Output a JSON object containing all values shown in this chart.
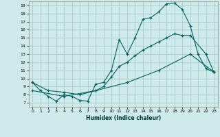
{
  "xlabel": "Humidex (Indice chaleur)",
  "bg_color": "#ceeaea",
  "grid_color": "#aacccc",
  "line_color": "#006060",
  "xlim": [
    -0.5,
    23.5
  ],
  "ylim": [
    6.5,
    19.5
  ],
  "xticks": [
    0,
    1,
    2,
    3,
    4,
    5,
    6,
    7,
    8,
    9,
    10,
    11,
    12,
    13,
    14,
    15,
    16,
    17,
    18,
    19,
    20,
    21,
    22,
    23
  ],
  "yticks": [
    7,
    8,
    9,
    10,
    11,
    12,
    13,
    14,
    15,
    16,
    17,
    18,
    19
  ],
  "line1_x": [
    0,
    1,
    2,
    3,
    4,
    5,
    6,
    7,
    8,
    9,
    10,
    11,
    12,
    13,
    14,
    15,
    16,
    17,
    18,
    19,
    20,
    21,
    22,
    23
  ],
  "line1_y": [
    9.5,
    8.5,
    7.8,
    7.2,
    8.0,
    7.8,
    7.3,
    7.2,
    9.3,
    9.5,
    11.0,
    14.8,
    13.0,
    15.0,
    17.3,
    17.5,
    18.2,
    19.2,
    19.3,
    18.5,
    16.5,
    13.0,
    11.2,
    10.8
  ],
  "line2_x": [
    0,
    2,
    4,
    6,
    8,
    9,
    10,
    11,
    12,
    13,
    14,
    15,
    16,
    17,
    18,
    19,
    20,
    22,
    23
  ],
  "line2_y": [
    9.5,
    8.5,
    8.3,
    8.0,
    8.5,
    9.0,
    10.2,
    11.5,
    12.0,
    12.8,
    13.5,
    14.0,
    14.5,
    15.0,
    15.5,
    15.3,
    15.3,
    13.0,
    10.8
  ],
  "line3_x": [
    0,
    4,
    8,
    12,
    16,
    20,
    23
  ],
  "line3_y": [
    8.5,
    7.8,
    8.5,
    9.5,
    11.0,
    13.0,
    10.8
  ]
}
